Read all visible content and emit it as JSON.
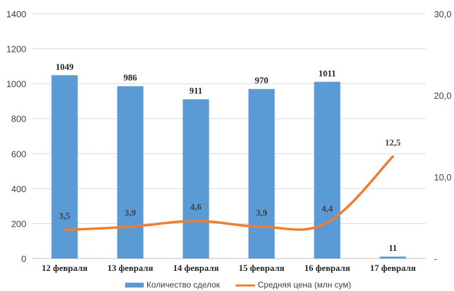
{
  "chart_data": {
    "type": "bar",
    "categories": [
      "12 февраля",
      "13 февраля",
      "14 февраля",
      "15 февраля",
      "16 февраля",
      "17 февраля"
    ],
    "series": [
      {
        "name": "Количество сделок",
        "type": "bar",
        "axis": "left",
        "color": "#5B9BD5",
        "values": [
          1049,
          986,
          911,
          970,
          1011,
          11
        ],
        "labels": [
          "1049",
          "986",
          "911",
          "970",
          "1011",
          "11"
        ]
      },
      {
        "name": "Средняя цена (млн сум)",
        "type": "line",
        "axis": "right",
        "color": "#ED7D31",
        "values": [
          3.5,
          3.9,
          4.6,
          3.9,
          4.4,
          12.5
        ],
        "labels": [
          "3,5",
          "3,9",
          "4,6",
          "3,9",
          "4,4",
          "12,5"
        ]
      }
    ],
    "y_left": {
      "min": 0,
      "max": 1400,
      "ticks": [
        0,
        200,
        400,
        600,
        800,
        1000,
        1200,
        1400
      ],
      "tick_labels": [
        "0",
        "200",
        "400",
        "600",
        "800",
        "1000",
        "1200",
        "1400"
      ]
    },
    "y_right": {
      "min": 0,
      "max": 30,
      "ticks": [
        0,
        10,
        20,
        30
      ],
      "tick_labels": [
        "-",
        "10,0",
        "20,0",
        "30,0"
      ]
    },
    "grid": true,
    "legend_position": "bottom"
  }
}
